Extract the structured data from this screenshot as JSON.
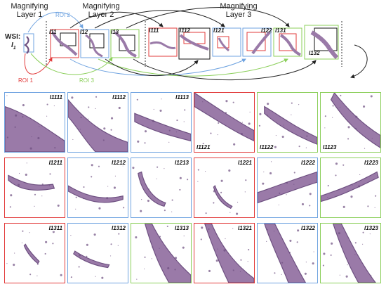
{
  "header": {
    "layer1": "Magnifying\nLayer 1",
    "layer2": "Magnifying\nLayer 2",
    "layer3": "Magnifying\nLayer 3",
    "wsi_label": "WSI:",
    "wsi_symbol": "I",
    "wsi_sub": "1",
    "roi1": "ROI 1",
    "roi2": "ROI 2",
    "roi3": "ROI 3",
    "row_labels": [
      "I11",
      "I12",
      "I13",
      "I111",
      "I112",
      "I121",
      "I122",
      "I131",
      "I132"
    ]
  },
  "colors": {
    "roi1": "#e23b3b",
    "roi2": "#6fa3e0",
    "roi3": "#8bcf5a",
    "tissue": "#9a7aa8",
    "tissue_dark": "#6d4f80"
  },
  "grid": {
    "tiles": [
      {
        "label": "I1111",
        "border": "#6fa3e0",
        "pos": "tr"
      },
      {
        "label": "I1112",
        "border": "#6fa3e0",
        "pos": "tr"
      },
      {
        "label": "I1113",
        "border": "#6fa3e0",
        "pos": "tr"
      },
      {
        "label": "I1121",
        "border": "#e23b3b",
        "pos": "bl"
      },
      {
        "label": "I1122",
        "border": "#8bcf5a",
        "pos": "bl"
      },
      {
        "label": "I1123",
        "border": "#8bcf5a",
        "pos": "bl"
      },
      {
        "label": "I1211",
        "border": "#e23b3b",
        "pos": "tr"
      },
      {
        "label": "I1212",
        "border": "#6fa3e0",
        "pos": "tr"
      },
      {
        "label": "I1213",
        "border": "#6fa3e0",
        "pos": "tr"
      },
      {
        "label": "I1221",
        "border": "#e23b3b",
        "pos": "tr"
      },
      {
        "label": "I1222",
        "border": "#6fa3e0",
        "pos": "tr"
      },
      {
        "label": "I1223",
        "border": "#8bcf5a",
        "pos": "tr"
      },
      {
        "label": "I1311",
        "border": "#e23b3b",
        "pos": "tr"
      },
      {
        "label": "I1312",
        "border": "#6fa3e0",
        "pos": "tr"
      },
      {
        "label": "I1313",
        "border": "#8bcf5a",
        "pos": "tr"
      },
      {
        "label": "I1321",
        "border": "#e23b3b",
        "pos": "tr"
      },
      {
        "label": "I1322",
        "border": "#6fa3e0",
        "pos": "tr"
      },
      {
        "label": "I1323",
        "border": "#8bcf5a",
        "pos": "tr"
      }
    ]
  }
}
